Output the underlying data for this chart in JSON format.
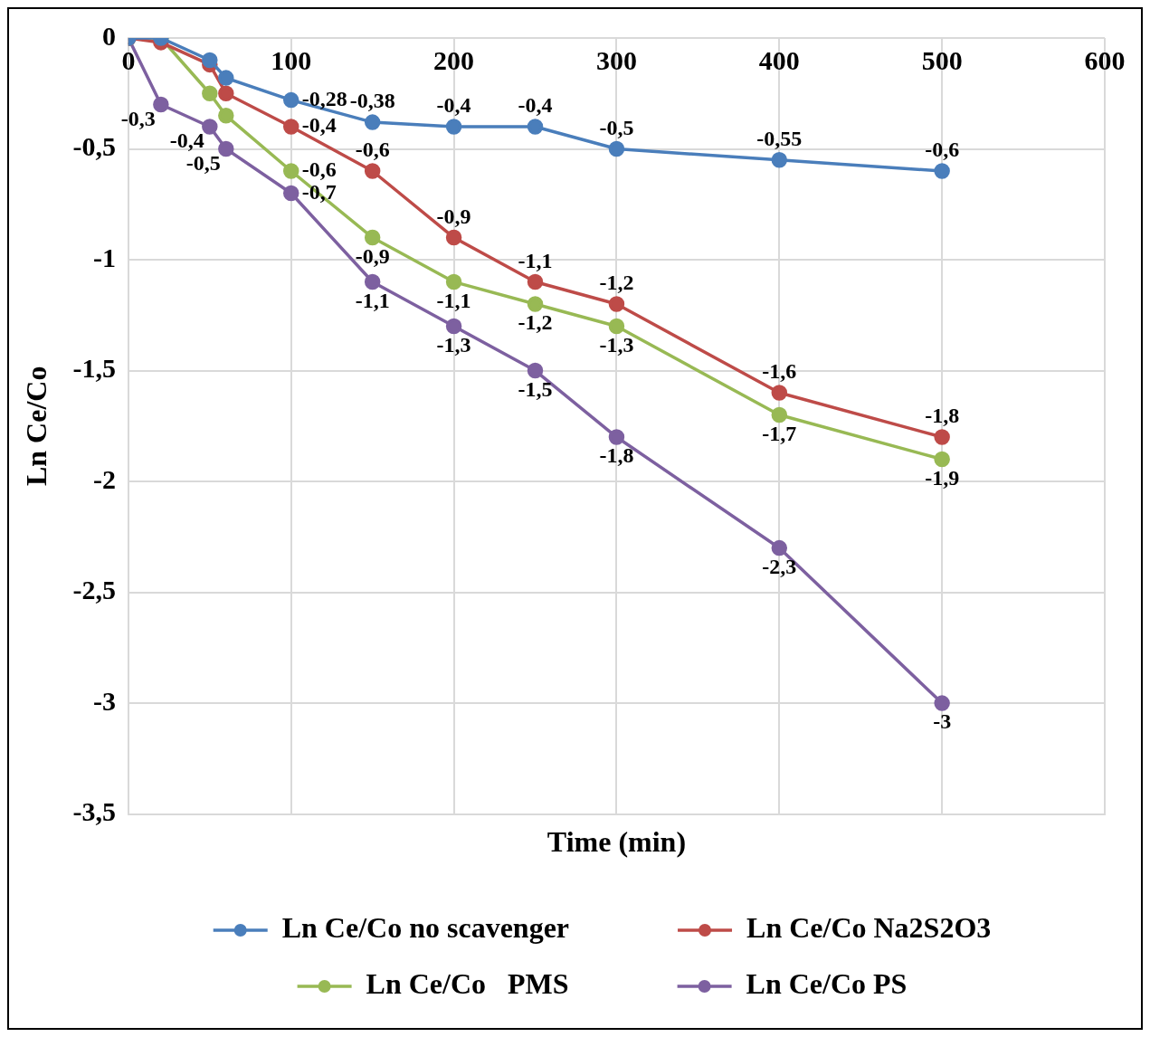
{
  "chart_data": {
    "type": "line",
    "xlabel": "Time (min)",
    "ylabel": "Ln Ce/Co",
    "x": [
      0,
      20,
      50,
      60,
      100,
      150,
      200,
      250,
      300,
      400,
      500
    ],
    "xlim": [
      0,
      600
    ],
    "xticks": [
      0,
      100,
      200,
      300,
      400,
      500,
      600
    ],
    "ylim": [
      -3.5,
      0
    ],
    "yticks": [
      {
        "value": -3.5,
        "label": "-3,5"
      },
      {
        "value": -3,
        "label": "-3"
      },
      {
        "value": -2.5,
        "label": "-2,5"
      },
      {
        "value": -2,
        "label": "-2"
      },
      {
        "value": -1.5,
        "label": "-1,5"
      },
      {
        "value": -1,
        "label": "-1"
      },
      {
        "value": -0.5,
        "label": "-0,5"
      },
      {
        "value": 0,
        "label": "0"
      }
    ],
    "grid": true,
    "legend": "bottom",
    "marker": "circle",
    "line_style": "solid",
    "series": [
      {
        "name": "Ln Ce/Co no scavenger",
        "color": "#4a7ebb",
        "values": [
          0,
          0,
          -0.1,
          -0.18,
          -0.28,
          -0.38,
          -0.4,
          -0.4,
          -0.5,
          -0.55,
          -0.6
        ],
        "value_labels": [
          null,
          null,
          null,
          null,
          "-0,28",
          "-0,38",
          "-0,4",
          "-0,4",
          "-0,5",
          "-0,55",
          "-0,6"
        ]
      },
      {
        "name": "Ln Ce/Co Na2S2O3",
        "color": "#be4b48",
        "values": [
          0,
          -0.02,
          -0.12,
          -0.25,
          -0.4,
          -0.6,
          -0.9,
          -1.1,
          -1.2,
          -1.6,
          -1.8
        ],
        "value_labels": [
          null,
          null,
          null,
          null,
          "-0,4",
          "-0,6",
          "-0,9",
          "-1,1",
          "-1,2",
          "-1,6",
          "-1,8"
        ]
      },
      {
        "name": "Ln Ce/Co   PMS",
        "color": "#98b954",
        "values": [
          0,
          0,
          -0.25,
          -0.35,
          -0.6,
          -0.9,
          -1.1,
          -1.2,
          -1.3,
          -1.7,
          -1.9
        ],
        "value_labels": [
          null,
          null,
          null,
          null,
          "-0,6",
          "-0,9",
          "-1,1",
          "-1,2",
          "-1,3",
          "-1,7",
          "-1,9"
        ]
      },
      {
        "name": "Ln Ce/Co PS",
        "color": "#7d60a0",
        "values": [
          0,
          -0.3,
          -0.4,
          -0.5,
          -0.7,
          -1.1,
          -1.3,
          -1.5,
          -1.8,
          -2.3,
          -3
        ],
        "value_labels": [
          null,
          "-0,3",
          "-0,4",
          "-0,5",
          "-0,7",
          "-1,1",
          "-1,3",
          "-1,5",
          "-1,8",
          "-2,3",
          "-3"
        ]
      }
    ]
  }
}
